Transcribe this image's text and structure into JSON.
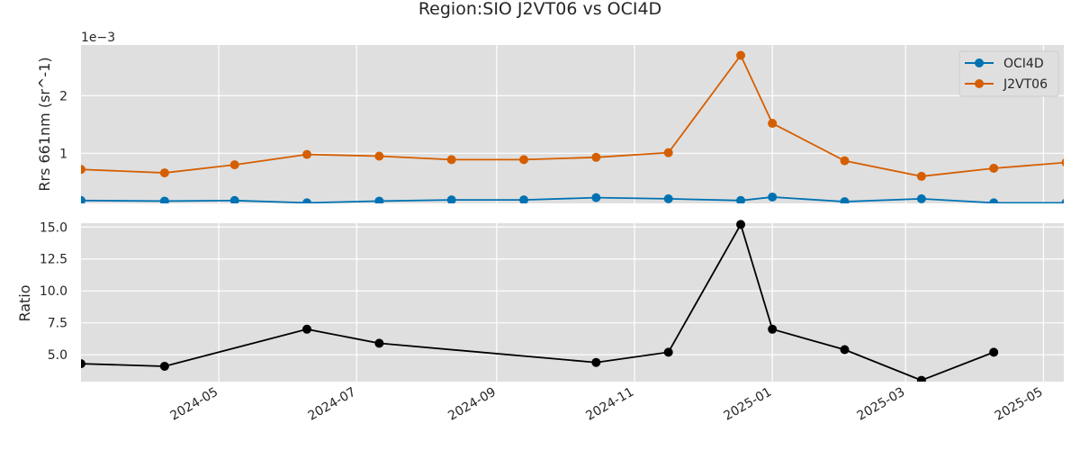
{
  "chart_data": {
    "type": "line",
    "title": "Region:SIO J2VT06 vs OCI4D",
    "x": [
      "2024-03-01",
      "2024-04-07",
      "2024-05-08",
      "2024-06-09",
      "2024-07-11",
      "2024-08-12",
      "2024-09-13",
      "2024-10-15",
      "2024-11-16",
      "2024-12-18",
      "2025-01-01",
      "2025-02-02",
      "2025-03-08",
      "2025-04-09",
      "2025-05-11"
    ],
    "xticks": [
      "2024-05",
      "2024-07",
      "2024-09",
      "2024-11",
      "2025-01",
      "2025-03",
      "2025-05"
    ],
    "xlim": [
      "2024-03-01",
      "2025-05-10"
    ],
    "top": {
      "ylabel": "Rrs 661nm (sr^-1)",
      "offset_label": "1e−3",
      "yticks": [
        "1",
        "2"
      ],
      "yticks_values": [
        1.0,
        2.0
      ],
      "ylim": [
        0.13,
        2.88
      ],
      "legend_position": "top-right",
      "series": [
        {
          "name": "OCI4D",
          "color": "#0072b2",
          "values": [
            0.18,
            0.17,
            0.18,
            0.14,
            0.17,
            0.19,
            0.19,
            0.23,
            0.21,
            0.18,
            0.24,
            0.16,
            0.21,
            0.14,
            0.14
          ]
        },
        {
          "name": "J2VT06",
          "color": "#d55e00",
          "values": [
            0.72,
            0.66,
            0.8,
            0.98,
            0.95,
            0.89,
            0.89,
            0.93,
            1.01,
            2.7,
            1.52,
            0.87,
            0.6,
            0.74,
            0.84
          ]
        }
      ]
    },
    "bottom": {
      "ylabel": "Ratio",
      "yticks": [
        "5.0",
        "7.5",
        "10.0",
        "12.5",
        "15.0"
      ],
      "yticks_values": [
        5.0,
        7.5,
        10.0,
        12.5,
        15.0
      ],
      "ylim": [
        2.9,
        15.3
      ],
      "series": [
        {
          "name": "",
          "color": "#000000",
          "values": [
            4.3,
            4.1,
            null,
            7.0,
            5.9,
            null,
            null,
            4.4,
            5.2,
            15.2,
            7.0,
            5.4,
            3.0,
            5.2,
            null
          ]
        }
      ]
    },
    "grid": true
  }
}
